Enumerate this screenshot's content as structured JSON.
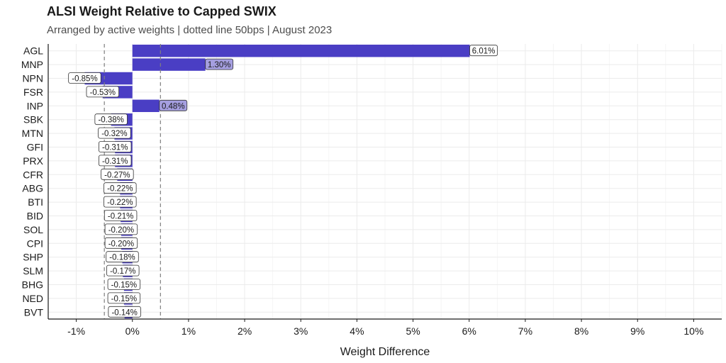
{
  "title": "ALSI Weight Relative to Capped SWIX",
  "subtitle": "Arranged by active weights | dotted line 50bps | August 2023",
  "chart_data": {
    "type": "bar",
    "orientation": "horizontal",
    "title": "ALSI Weight Relative to Capped SWIX",
    "subtitle": "Arranged by active weights | dotted line 50bps | August 2023",
    "xlabel": "Weight Difference",
    "ylabel": "",
    "xlim": [
      -1.5,
      10.5
    ],
    "x_ticks": [
      -1,
      0,
      1,
      2,
      3,
      4,
      5,
      6,
      7,
      8,
      9,
      10
    ],
    "x_tick_labels": [
      "-1%",
      "0%",
      "1%",
      "2%",
      "3%",
      "4%",
      "5%",
      "6%",
      "7%",
      "8%",
      "9%",
      "10%"
    ],
    "reference_lines": [
      -0.5,
      0.5
    ],
    "reference_line_style": "dashed",
    "grid": true,
    "legend": "none",
    "bar_color": "#4a3ec4",
    "highlight_label_color": "#a59fe0",
    "categories": [
      "AGL",
      "MNP",
      "NPN",
      "FSR",
      "INP",
      "SBK",
      "MTN",
      "GFI",
      "PRX",
      "CFR",
      "ABG",
      "BTI",
      "BID",
      "SOL",
      "CPI",
      "SHP",
      "SLM",
      "BHG",
      "NED",
      "BVT"
    ],
    "values": [
      6.01,
      1.3,
      -0.85,
      -0.53,
      0.48,
      -0.38,
      -0.32,
      -0.31,
      -0.31,
      -0.27,
      -0.22,
      -0.22,
      -0.21,
      -0.2,
      -0.2,
      -0.18,
      -0.17,
      -0.15,
      -0.15,
      -0.14
    ],
    "data_labels": [
      "6.01%",
      "1.30%",
      "-0.85%",
      "-0.53%",
      "0.48%",
      "-0.38%",
      "-0.32%",
      "-0.31%",
      "-0.31%",
      "-0.27%",
      "-0.22%",
      "-0.22%",
      "-0.21%",
      "-0.20%",
      "-0.20%",
      "-0.18%",
      "-0.17%",
      "-0.15%",
      "-0.15%",
      "-0.14%"
    ]
  }
}
